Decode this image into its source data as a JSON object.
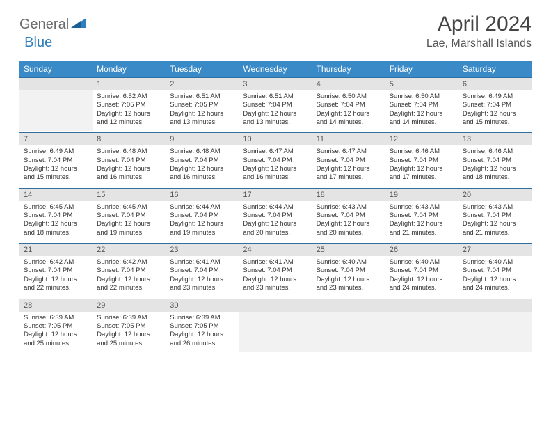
{
  "brand": {
    "part1": "General",
    "part2": "Blue"
  },
  "title": "April 2024",
  "location": "Lae, Marshall Islands",
  "colors": {
    "header_bg": "#3a8ac7",
    "header_text": "#ffffff",
    "daynum_bg": "#e4e4e4",
    "row_divider": "#2f6ea2",
    "logo_gray": "#6b6b6b",
    "logo_blue": "#2f7fbf"
  },
  "typography": {
    "title_fontsize": 30,
    "location_fontsize": 16,
    "dayheader_fontsize": 12,
    "daynum_fontsize": 11,
    "body_fontsize": 9.5
  },
  "day_headers": [
    "Sunday",
    "Monday",
    "Tuesday",
    "Wednesday",
    "Thursday",
    "Friday",
    "Saturday"
  ],
  "weeks": [
    [
      {
        "empty": true
      },
      {
        "num": "1",
        "sunrise": "Sunrise: 6:52 AM",
        "sunset": "Sunset: 7:05 PM",
        "daylight": "Daylight: 12 hours and 12 minutes."
      },
      {
        "num": "2",
        "sunrise": "Sunrise: 6:51 AM",
        "sunset": "Sunset: 7:05 PM",
        "daylight": "Daylight: 12 hours and 13 minutes."
      },
      {
        "num": "3",
        "sunrise": "Sunrise: 6:51 AM",
        "sunset": "Sunset: 7:04 PM",
        "daylight": "Daylight: 12 hours and 13 minutes."
      },
      {
        "num": "4",
        "sunrise": "Sunrise: 6:50 AM",
        "sunset": "Sunset: 7:04 PM",
        "daylight": "Daylight: 12 hours and 14 minutes."
      },
      {
        "num": "5",
        "sunrise": "Sunrise: 6:50 AM",
        "sunset": "Sunset: 7:04 PM",
        "daylight": "Daylight: 12 hours and 14 minutes."
      },
      {
        "num": "6",
        "sunrise": "Sunrise: 6:49 AM",
        "sunset": "Sunset: 7:04 PM",
        "daylight": "Daylight: 12 hours and 15 minutes."
      }
    ],
    [
      {
        "num": "7",
        "sunrise": "Sunrise: 6:49 AM",
        "sunset": "Sunset: 7:04 PM",
        "daylight": "Daylight: 12 hours and 15 minutes."
      },
      {
        "num": "8",
        "sunrise": "Sunrise: 6:48 AM",
        "sunset": "Sunset: 7:04 PM",
        "daylight": "Daylight: 12 hours and 16 minutes."
      },
      {
        "num": "9",
        "sunrise": "Sunrise: 6:48 AM",
        "sunset": "Sunset: 7:04 PM",
        "daylight": "Daylight: 12 hours and 16 minutes."
      },
      {
        "num": "10",
        "sunrise": "Sunrise: 6:47 AM",
        "sunset": "Sunset: 7:04 PM",
        "daylight": "Daylight: 12 hours and 16 minutes."
      },
      {
        "num": "11",
        "sunrise": "Sunrise: 6:47 AM",
        "sunset": "Sunset: 7:04 PM",
        "daylight": "Daylight: 12 hours and 17 minutes."
      },
      {
        "num": "12",
        "sunrise": "Sunrise: 6:46 AM",
        "sunset": "Sunset: 7:04 PM",
        "daylight": "Daylight: 12 hours and 17 minutes."
      },
      {
        "num": "13",
        "sunrise": "Sunrise: 6:46 AM",
        "sunset": "Sunset: 7:04 PM",
        "daylight": "Daylight: 12 hours and 18 minutes."
      }
    ],
    [
      {
        "num": "14",
        "sunrise": "Sunrise: 6:45 AM",
        "sunset": "Sunset: 7:04 PM",
        "daylight": "Daylight: 12 hours and 18 minutes."
      },
      {
        "num": "15",
        "sunrise": "Sunrise: 6:45 AM",
        "sunset": "Sunset: 7:04 PM",
        "daylight": "Daylight: 12 hours and 19 minutes."
      },
      {
        "num": "16",
        "sunrise": "Sunrise: 6:44 AM",
        "sunset": "Sunset: 7:04 PM",
        "daylight": "Daylight: 12 hours and 19 minutes."
      },
      {
        "num": "17",
        "sunrise": "Sunrise: 6:44 AM",
        "sunset": "Sunset: 7:04 PM",
        "daylight": "Daylight: 12 hours and 20 minutes."
      },
      {
        "num": "18",
        "sunrise": "Sunrise: 6:43 AM",
        "sunset": "Sunset: 7:04 PM",
        "daylight": "Daylight: 12 hours and 20 minutes."
      },
      {
        "num": "19",
        "sunrise": "Sunrise: 6:43 AM",
        "sunset": "Sunset: 7:04 PM",
        "daylight": "Daylight: 12 hours and 21 minutes."
      },
      {
        "num": "20",
        "sunrise": "Sunrise: 6:43 AM",
        "sunset": "Sunset: 7:04 PM",
        "daylight": "Daylight: 12 hours and 21 minutes."
      }
    ],
    [
      {
        "num": "21",
        "sunrise": "Sunrise: 6:42 AM",
        "sunset": "Sunset: 7:04 PM",
        "daylight": "Daylight: 12 hours and 22 minutes."
      },
      {
        "num": "22",
        "sunrise": "Sunrise: 6:42 AM",
        "sunset": "Sunset: 7:04 PM",
        "daylight": "Daylight: 12 hours and 22 minutes."
      },
      {
        "num": "23",
        "sunrise": "Sunrise: 6:41 AM",
        "sunset": "Sunset: 7:04 PM",
        "daylight": "Daylight: 12 hours and 23 minutes."
      },
      {
        "num": "24",
        "sunrise": "Sunrise: 6:41 AM",
        "sunset": "Sunset: 7:04 PM",
        "daylight": "Daylight: 12 hours and 23 minutes."
      },
      {
        "num": "25",
        "sunrise": "Sunrise: 6:40 AM",
        "sunset": "Sunset: 7:04 PM",
        "daylight": "Daylight: 12 hours and 23 minutes."
      },
      {
        "num": "26",
        "sunrise": "Sunrise: 6:40 AM",
        "sunset": "Sunset: 7:04 PM",
        "daylight": "Daylight: 12 hours and 24 minutes."
      },
      {
        "num": "27",
        "sunrise": "Sunrise: 6:40 AM",
        "sunset": "Sunset: 7:04 PM",
        "daylight": "Daylight: 12 hours and 24 minutes."
      }
    ],
    [
      {
        "num": "28",
        "sunrise": "Sunrise: 6:39 AM",
        "sunset": "Sunset: 7:05 PM",
        "daylight": "Daylight: 12 hours and 25 minutes."
      },
      {
        "num": "29",
        "sunrise": "Sunrise: 6:39 AM",
        "sunset": "Sunset: 7:05 PM",
        "daylight": "Daylight: 12 hours and 25 minutes."
      },
      {
        "num": "30",
        "sunrise": "Sunrise: 6:39 AM",
        "sunset": "Sunset: 7:05 PM",
        "daylight": "Daylight: 12 hours and 26 minutes."
      },
      {
        "empty": true
      },
      {
        "empty": true
      },
      {
        "empty": true
      },
      {
        "empty": true
      }
    ]
  ]
}
